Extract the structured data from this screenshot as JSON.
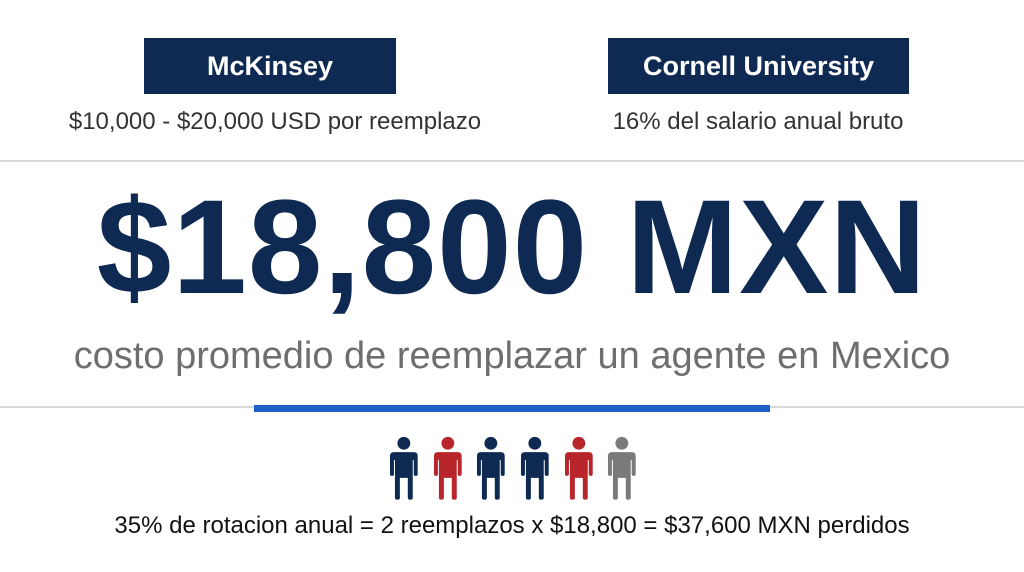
{
  "sources": {
    "left": {
      "name": "McKinsey",
      "note": "$10,000 - $20,000 USD por reemplazo"
    },
    "right": {
      "name": "Cornell University",
      "note": "16% del salario anual bruto"
    }
  },
  "headline": "$18,800 MXN",
  "subline": "costo promedio de reemplazar un agente en Mexico",
  "people": [
    {
      "icon": "person-icon",
      "color": "#0e2a52"
    },
    {
      "icon": "person-icon",
      "color": "#b8262b"
    },
    {
      "icon": "person-icon",
      "color": "#0e2a52"
    },
    {
      "icon": "person-icon",
      "color": "#0e2a52"
    },
    {
      "icon": "person-icon",
      "color": "#b8262b"
    },
    {
      "icon": "person-icon",
      "color": "#7a7a7a"
    }
  ],
  "footer": "35% de rotacion anual = 2 reemplazos x $18,800 = $37,600 MXN perdidos",
  "colors": {
    "navy": "#0e2a52",
    "red": "#b8262b",
    "gray": "#7a7a7a",
    "accent": "#1f5fc8"
  }
}
